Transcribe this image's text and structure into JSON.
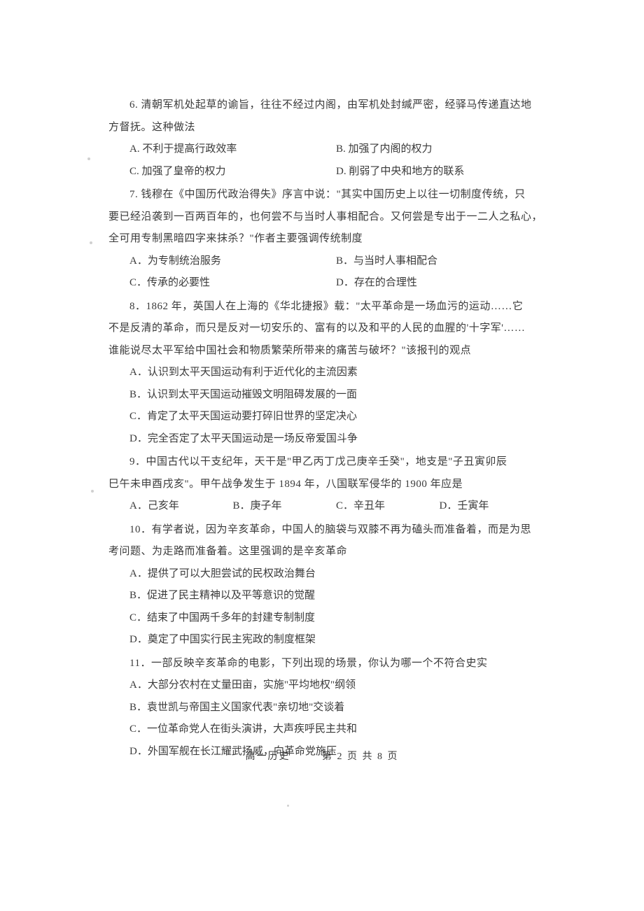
{
  "page": {
    "subject": "高一历史",
    "page_number": "第 2 页 共 8 页",
    "background_color": "#ffffff",
    "text_color": "#3a3a3a",
    "font_size_body": 15,
    "font_size_footer": 14,
    "line_height": 2.1
  },
  "questions": [
    {
      "number": "6",
      "stem_line1": "6. 清朝军机处起草的谕旨，往往不经过内阁，由军机处封缄严密，经驿马传递直达地",
      "stem_line2": "方督抚。这种做法",
      "options": [
        {
          "label": "A. 不利于提高行政效率"
        },
        {
          "label": "B. 加强了内阁的权力"
        },
        {
          "label": "C. 加强了皇帝的权力"
        },
        {
          "label": "D. 削弱了中央和地方的联系"
        }
      ],
      "layout": "two-col"
    },
    {
      "number": "7",
      "stem_line1": "7. 钱穆在《中国历代政治得失》序言中说：\"其实中国历史上以往一切制度传统，只",
      "stem_line2": "要已经沿袭到一百两百年的，也何尝不与当时人事相配合。又何尝是专出于一二人之私心，",
      "stem_line3": "全可用专制黑暗四字来抹杀？\"作者主要强调传统制度",
      "options": [
        {
          "label": "A．为专制统治服务"
        },
        {
          "label": "B．与当时人事相配合"
        },
        {
          "label": "C．传承的必要性"
        },
        {
          "label": "D．存在的合理性"
        }
      ],
      "layout": "two-col"
    },
    {
      "number": "8",
      "stem_line1": "8．1862 年，英国人在上海的《华北捷报》载：\"太平革命是一场血污的运动……它",
      "stem_line2": "不是反清的革命，而只是反对一切安乐的、富有的以及和平的人民的血腥的'十字军'……",
      "stem_line3": "谁能说尽太平军给中国社会和物质繁荣所带来的痛苦与破坏？\"该报刊的观点",
      "options": [
        {
          "label": "A．认识到太平天国运动有利于近代化的主流因素"
        },
        {
          "label": "B．认识到太平天国运动摧毁文明阻碍发展的一面"
        },
        {
          "label": "C．肯定了太平天国运动要打碎旧世界的坚定决心"
        },
        {
          "label": "D．完全否定了太平天国运动是一场反帝爱国斗争"
        }
      ],
      "layout": "one-col"
    },
    {
      "number": "9",
      "stem_line1": "9．中国古代以干支纪年，天干是\"甲乙丙丁戊己庚辛壬癸\"，地支是\"子丑寅卯辰",
      "stem_line2": "巳午未申酉戌亥\"。甲午战争发生于 1894 年，八国联军侵华的 1900 年应是",
      "options": [
        {
          "label": "A．己亥年"
        },
        {
          "label": "B．庚子年"
        },
        {
          "label": "C．辛丑年"
        },
        {
          "label": "D．壬寅年"
        }
      ],
      "layout": "four-col"
    },
    {
      "number": "10",
      "stem_line1": "10．有学者说，因为辛亥革命，中国人的脑袋与双膝不再为磕头而准备着，而是为思",
      "stem_line2": "考问题、为走路而准备着。这里强调的是辛亥革命",
      "options": [
        {
          "label": "A．提供了可以大胆尝试的民权政治舞台"
        },
        {
          "label": "B．促进了民主精神以及平等意识的觉醒"
        },
        {
          "label": "C．结束了中国两千多年的封建专制制度"
        },
        {
          "label": "D．奠定了中国实行民主宪政的制度框架"
        }
      ],
      "layout": "one-col"
    },
    {
      "number": "11",
      "stem_line1": "11．一部反映辛亥革命的电影，下列出现的场景，你认为哪一个不符合史实",
      "options": [
        {
          "label": "A．大部分农村在丈量田亩，实施\"平均地权\"纲领"
        },
        {
          "label": "B．袁世凯与帝国主义国家代表\"亲切地\"交谈着"
        },
        {
          "label": "C．一位革命党人在街头演讲，大声疾呼民主共和"
        },
        {
          "label": "D．外国军舰在长江耀武扬威，向革命党施压"
        }
      ],
      "layout": "one-col"
    }
  ]
}
